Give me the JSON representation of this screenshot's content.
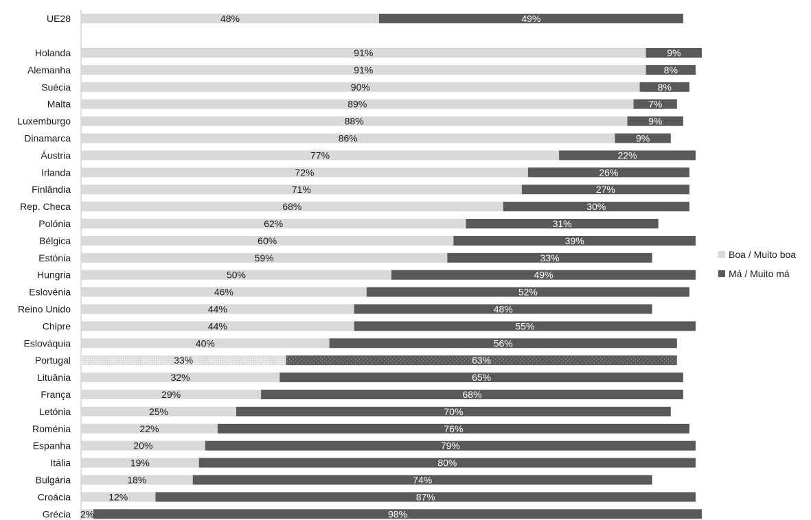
{
  "chart_data": {
    "type": "bar",
    "orientation": "horizontal",
    "stacked": true,
    "title": "",
    "xlabel": "",
    "ylabel": "",
    "xlim": [
      0,
      100
    ],
    "grid": false,
    "legend_position": "right",
    "colors": {
      "good": "#d9d9d9",
      "bad": "#595959",
      "axis": "#bfbfbf"
    },
    "highlight_category": "Portugal",
    "categories": [
      "UE28",
      "Holanda",
      "Alemanha",
      "Suécia",
      "Malta",
      "Luxemburgo",
      "Dinamarca",
      "Áustria",
      "Irlanda",
      "Finlândia",
      "Rep. Checa",
      "Polónia",
      "Bélgica",
      "Estónia",
      "Hungria",
      "Eslovénia",
      "Reino Unido",
      "Chipre",
      "Eslováquia",
      "Portugal",
      "Lituânia",
      "França",
      "Letónia",
      "Roménia",
      "Espanha",
      "Itália",
      "Bulgária",
      "Croácia",
      "Grécia"
    ],
    "series": [
      {
        "name": "Boa / Muito boa",
        "values": [
          48,
          91,
          91,
          90,
          89,
          88,
          86,
          77,
          72,
          71,
          68,
          62,
          60,
          59,
          50,
          46,
          44,
          44,
          40,
          33,
          32,
          29,
          25,
          22,
          20,
          19,
          18,
          12,
          2
        ]
      },
      {
        "name": "Má / Muito má",
        "values": [
          49,
          9,
          8,
          8,
          7,
          9,
          9,
          22,
          26,
          27,
          30,
          31,
          39,
          33,
          49,
          52,
          48,
          55,
          56,
          63,
          65,
          68,
          70,
          76,
          79,
          80,
          74,
          87,
          98
        ]
      }
    ]
  }
}
